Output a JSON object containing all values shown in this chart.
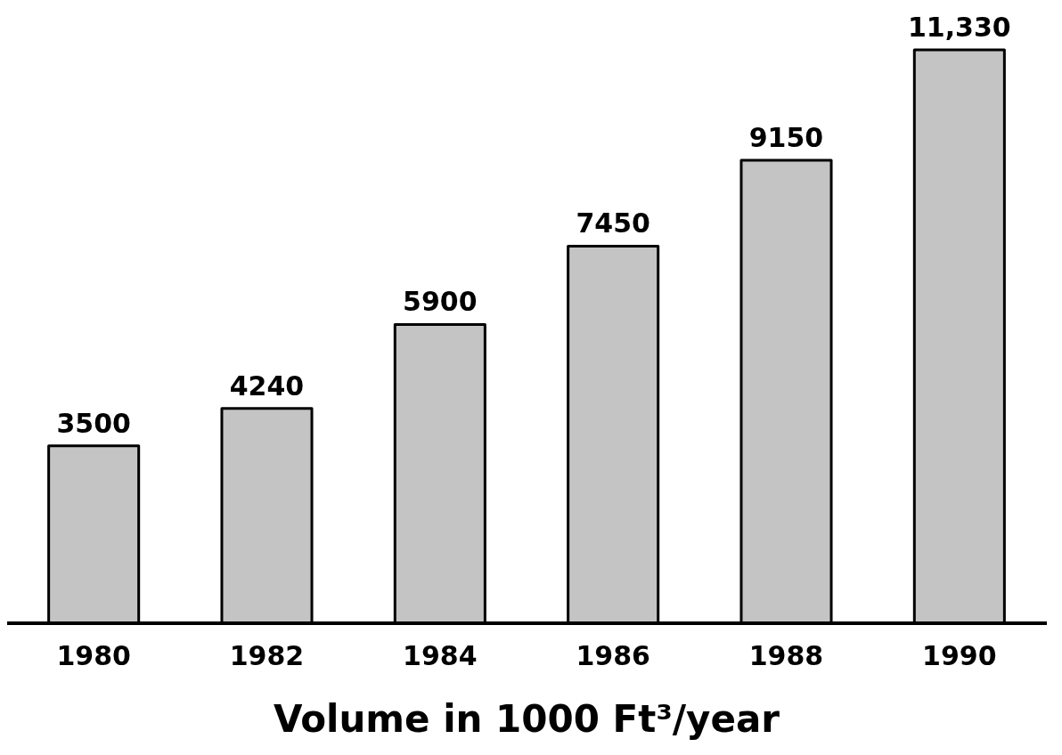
{
  "chart_data": {
    "type": "bar",
    "xlabel": "Volume in 1000 Ft³/year",
    "x": [
      1980,
      1982,
      1984,
      1986,
      1988,
      1990
    ],
    "xlim": [
      1979,
      1991
    ],
    "xticks": [
      1980,
      1982,
      1984,
      1986,
      1988,
      1990
    ],
    "values": [
      3500,
      4240,
      5900,
      7450,
      9150,
      11330
    ],
    "value_labels": [
      "3500",
      "4240",
      "5900",
      "7450",
      "9150",
      "11,330"
    ],
    "color": "#c4c4c4",
    "grid": false,
    "legend": false
  }
}
